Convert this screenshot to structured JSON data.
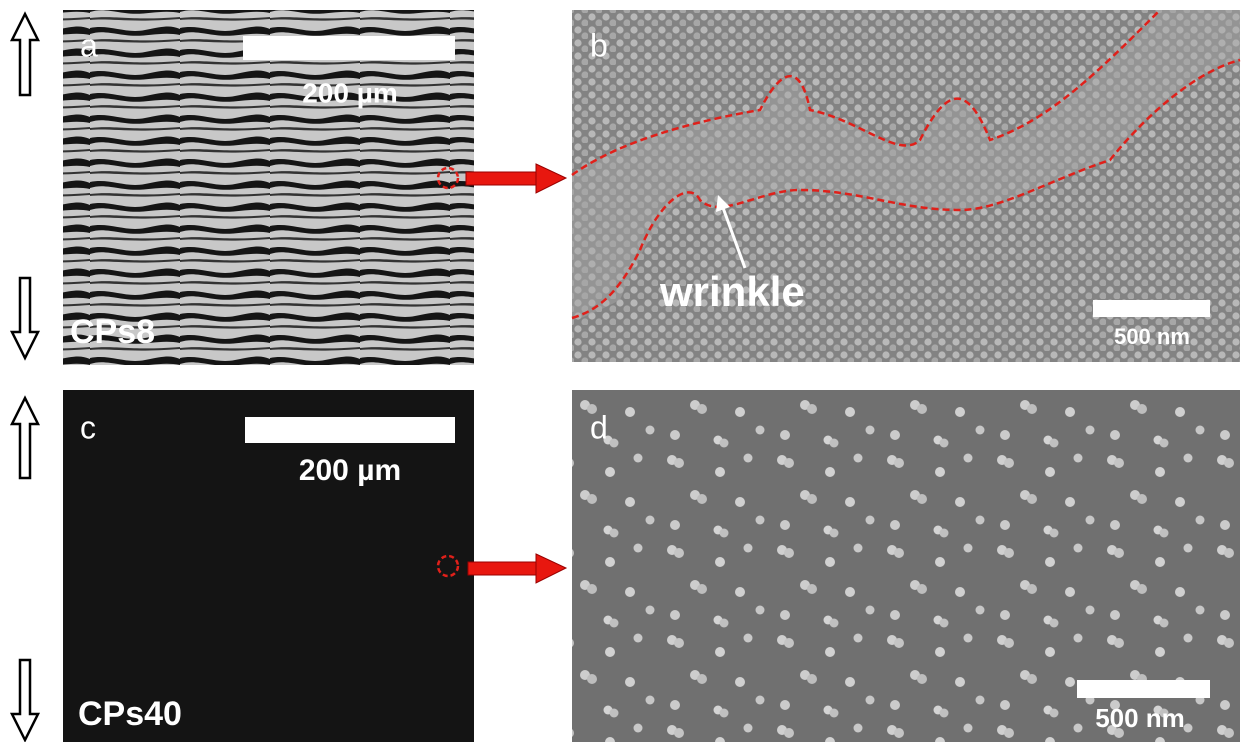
{
  "panels": [
    {
      "label": "a",
      "scale_bar": "200 µm",
      "sample": "CPs8"
    },
    {
      "label": "b",
      "scale_bar": "500 nm",
      "annotation": "wrinkle"
    },
    {
      "label": "c",
      "scale_bar": "200 µm",
      "sample": "CPs40"
    },
    {
      "label": "d",
      "scale_bar": "500 nm"
    }
  ]
}
